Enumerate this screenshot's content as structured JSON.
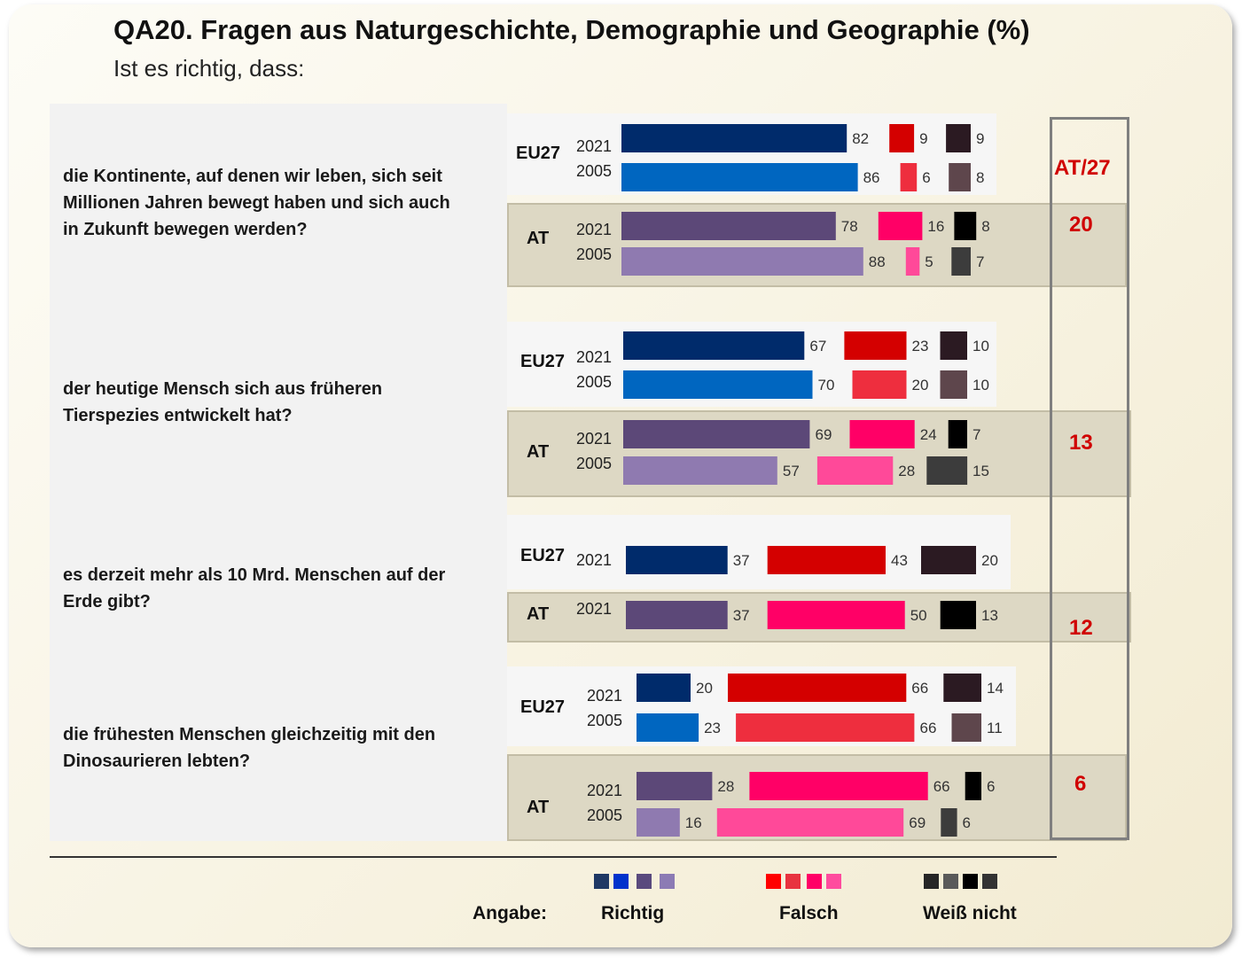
{
  "title": "QA20. Fragen aus Naturgeschichte, Demographie und Geographie (%)",
  "subtitle": "Ist es richtig, dass:",
  "at27_header": "AT/27",
  "legend": {
    "prefix": "Angabe:",
    "items": [
      {
        "label": "Richtig",
        "colors": [
          "#1f3864",
          "#0033cc",
          "#5a4a7e",
          "#8c7bb4"
        ]
      },
      {
        "label": "Falsch",
        "colors": [
          "#ff0000",
          "#e8333f",
          "#ff0066",
          "#ff4c9e"
        ]
      },
      {
        "label": "Weiß nicht",
        "colors": [
          "#262626",
          "#5a5a5a",
          "#000000",
          "#333333"
        ]
      }
    ]
  },
  "groups": {
    "eu": "EU27",
    "at": "AT"
  },
  "colors": {
    "eu_richtig_2021": "#002b6b",
    "eu_richtig_2005": "#0066c0",
    "eu_falsch_2021": "#d40000",
    "eu_falsch_2005": "#ee2e3e",
    "eu_wn_2021": "#2b1a22",
    "eu_wn_2005": "#5e464c",
    "at_richtig_2021": "#5c4878",
    "at_richtig_2005": "#8f7ab0",
    "at_falsch_2021": "#ff0066",
    "at_falsch_2005": "#ff4999",
    "at_wn_2021": "#000000",
    "at_wn_2005": "#3c3c3c"
  },
  "chart_data": {
    "type": "bar",
    "series_names": [
      "Richtig",
      "Falsch",
      "Weiß nicht"
    ],
    "questions": [
      {
        "text": "die Kontinente, auf denen wir leben, sich seit Millionen Jahren  bewegt haben und sich auch in Zukunft bewegen werden?",
        "lines": [
          "die Kontinente, auf denen wir leben, sich seit",
          "Millionen Jahren  bewegt haben und sich auch",
          "in Zukunft bewegen werden?"
        ],
        "at27": "20",
        "eu": [
          {
            "year": "2021",
            "values": [
              82,
              9,
              9
            ]
          },
          {
            "year": "2005",
            "values": [
              86,
              6,
              8
            ]
          }
        ],
        "at": [
          {
            "year": "2021",
            "values": [
              78,
              16,
              8
            ]
          },
          {
            "year": "2005",
            "values": [
              88,
              5,
              7
            ]
          }
        ]
      },
      {
        "text": "der heutige Mensch  sich aus früheren Tierspezies entwickelt hat?",
        "lines": [
          "der heutige Mensch  sich aus früheren",
          "Tierspezies entwickelt hat?"
        ],
        "at27": "13",
        "eu": [
          {
            "year": "2021",
            "values": [
              67,
              23,
              10
            ]
          },
          {
            "year": "2005",
            "values": [
              70,
              20,
              10
            ]
          }
        ],
        "at": [
          {
            "year": "2021",
            "values": [
              69,
              24,
              7
            ]
          },
          {
            "year": "2005",
            "values": [
              57,
              28,
              15
            ]
          }
        ]
      },
      {
        "text": "es derzeit mehr als 10 Mrd. Menschen auf der Erde gibt?",
        "lines": [
          "es derzeit mehr als 10 Mrd. Menschen auf der",
          "Erde gibt?"
        ],
        "at27": "12",
        "eu": [
          {
            "year": "2021",
            "values": [
              37,
              43,
              20
            ]
          }
        ],
        "at": [
          {
            "year": "2021",
            "values": [
              37,
              50,
              13
            ]
          }
        ]
      },
      {
        "text": "die frühesten Menschen gleichzeitig mit den Dinosaurieren lebten?",
        "lines": [
          "die frühesten Menschen gleichzeitig mit den",
          "Dinosaurieren lebten?"
        ],
        "at27": "6",
        "eu": [
          {
            "year": "2021",
            "values": [
              20,
              66,
              14
            ]
          },
          {
            "year": "2005",
            "values": [
              23,
              66,
              11
            ]
          }
        ],
        "at": [
          {
            "year": "2021",
            "values": [
              28,
              66,
              6
            ]
          },
          {
            "year": "2005",
            "values": [
              16,
              69,
              6
            ]
          }
        ]
      }
    ]
  }
}
